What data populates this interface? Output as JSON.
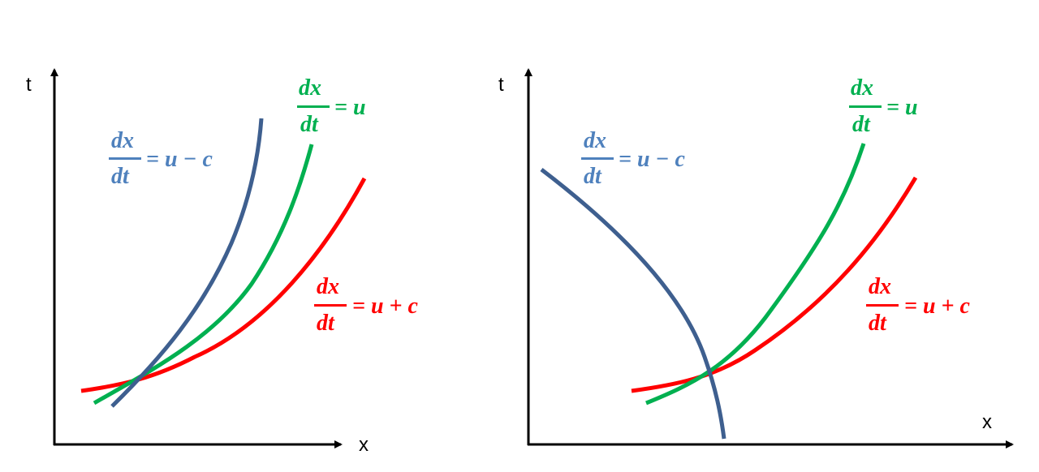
{
  "colors": {
    "u_minus_c_text": "#4f81bd",
    "u_minus_c_curve": "#3e5f8f",
    "u": "#00b050",
    "u_plus_c": "#ff0000",
    "axis": "#000000"
  },
  "left_panel": {
    "y_axis_label": "t",
    "x_axis_label": "x",
    "labels": {
      "u_minus_c": {
        "numerator": "dx",
        "denominator": "dt",
        "rhs": "= u − c"
      },
      "u": {
        "numerator": "dx",
        "denominator": "dt",
        "rhs": "= u"
      },
      "u_plus_c": {
        "numerator": "dx",
        "denominator": "dt",
        "rhs": "= u + c"
      }
    }
  },
  "right_panel": {
    "y_axis_label": "t",
    "x_axis_label": "x",
    "labels": {
      "u_minus_c": {
        "numerator": "dx",
        "denominator": "dt",
        "rhs": "= u − c"
      },
      "u": {
        "numerator": "dx",
        "denominator": "dt",
        "rhs": "= u"
      },
      "u_plus_c": {
        "numerator": "dx",
        "denominator": "dt",
        "rhs": "= u + c"
      }
    }
  }
}
